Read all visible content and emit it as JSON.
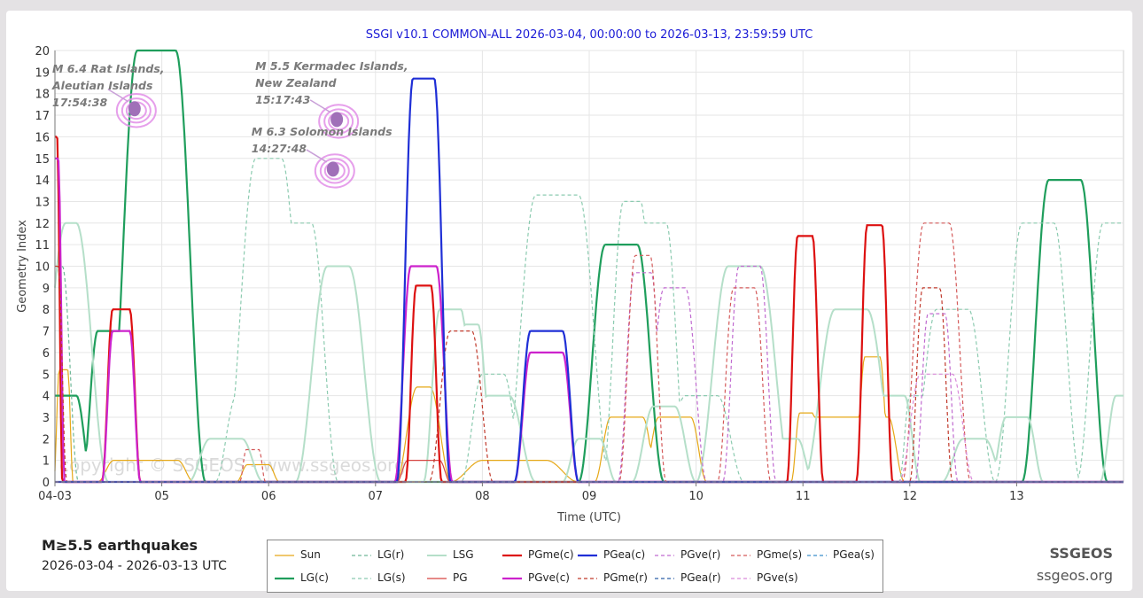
{
  "chart_data": {
    "type": "line",
    "title": "SSGI v10.1 COMMON-ALL 2026-03-04, 00:00:00 to 2026-03-13, 23:59:59 UTC",
    "xlabel": "Time (UTC)",
    "ylabel": "Geometry Index",
    "xlim": [
      0,
      10
    ],
    "ylim": [
      0,
      20
    ],
    "x_ticks": [
      {
        "x": 0,
        "label": "04-03"
      },
      {
        "x": 1,
        "label": "05"
      },
      {
        "x": 2,
        "label": "06"
      },
      {
        "x": 3,
        "label": "07"
      },
      {
        "x": 4,
        "label": "08"
      },
      {
        "x": 5,
        "label": "09"
      },
      {
        "x": 6,
        "label": "10"
      },
      {
        "x": 7,
        "label": "11"
      },
      {
        "x": 8,
        "label": "12"
      },
      {
        "x": 9,
        "label": "13"
      }
    ],
    "y_ticks": [
      0,
      1,
      2,
      3,
      4,
      5,
      6,
      7,
      8,
      9,
      10,
      11,
      12,
      13,
      14,
      15,
      16,
      17,
      18,
      19,
      20
    ],
    "grid": true,
    "legend_position": "bottom",
    "watermark": "copyright © SSGEOS - www.ssgeos.org",
    "series": [
      {
        "name": "Sun",
        "color": "#e6a817",
        "style": "solid",
        "width": 1.2,
        "peaks": [
          [
            0.08,
            5.2,
            0.04,
            0.05
          ],
          [
            0.85,
            1,
            0.3,
            0.15
          ],
          [
            1.0,
            0.8,
            0.1,
            0.1
          ],
          [
            1.9,
            0.8,
            0.1,
            0.1
          ],
          [
            3.45,
            4.4,
            0.06,
            0.2
          ],
          [
            4.3,
            1,
            0.3,
            0.3
          ],
          [
            5.35,
            3,
            0.15,
            0.15
          ],
          [
            5.8,
            3,
            0.15,
            0.15
          ],
          [
            7.03,
            3.2,
            0.06,
            0.08
          ],
          [
            7.45,
            3,
            0.35,
            0.15
          ],
          [
            7.65,
            5.8,
            0.07,
            0.1
          ]
        ]
      },
      {
        "name": "LG(c)",
        "color": "#1f9e5c",
        "style": "solid",
        "width": 2.2,
        "peaks": [
          [
            0.0,
            4,
            0.2,
            0.15
          ],
          [
            0.5,
            7,
            0.1,
            0.15
          ],
          [
            0.95,
            20,
            0.18,
            0.28
          ],
          [
            5.3,
            11,
            0.15,
            0.25
          ],
          [
            9.45,
            14,
            0.15,
            0.25
          ]
        ]
      },
      {
        "name": "LG(r)",
        "color": "#6fb898",
        "style": "dash",
        "width": 1.2,
        "peaks": [
          [
            0.05,
            10,
            0.02,
            0.15
          ]
        ]
      },
      {
        "name": "LG(s)",
        "color": "#8ccbb0",
        "style": "dash",
        "width": 1.2,
        "peaks": [
          [
            1.85,
            4,
            0.15,
            0.2
          ],
          [
            2.0,
            15,
            0.12,
            0.3
          ],
          [
            2.25,
            12,
            0.15,
            0.25
          ],
          [
            4.1,
            5,
            0.1,
            0.2
          ],
          [
            4.7,
            13.3,
            0.2,
            0.3
          ],
          [
            5.4,
            13,
            0.08,
            0.2
          ],
          [
            5.6,
            12,
            0.12,
            0.2
          ],
          [
            6.05,
            4,
            0.15,
            0.25
          ],
          [
            8.4,
            8,
            0.15,
            0.25
          ],
          [
            8.1,
            4,
            0.1,
            0.1
          ],
          [
            9.2,
            12,
            0.15,
            0.25
          ],
          [
            9.93,
            12,
            0.12,
            0.25
          ]
        ]
      },
      {
        "name": "LSG",
        "color": "#b5dfc9",
        "style": "solid",
        "width": 2.0,
        "peaks": [
          [
            0.15,
            12,
            0.05,
            0.3
          ],
          [
            1.6,
            2,
            0.15,
            0.2
          ],
          [
            2.65,
            10,
            0.1,
            0.3
          ],
          [
            3.7,
            8,
            0.1,
            0.15
          ],
          [
            3.9,
            7.3,
            0.06,
            0.15
          ],
          [
            4.15,
            4,
            0.1,
            0.25
          ],
          [
            5.0,
            2,
            0.1,
            0.15
          ],
          [
            5.7,
            3.5,
            0.1,
            0.2
          ],
          [
            6.45,
            10,
            0.15,
            0.3
          ],
          [
            6.85,
            2,
            0.1,
            0.15
          ],
          [
            7.45,
            8,
            0.15,
            0.3
          ],
          [
            7.85,
            4,
            0.1,
            0.15
          ],
          [
            8.6,
            2,
            0.1,
            0.2
          ],
          [
            9.0,
            3,
            0.1,
            0.15
          ],
          [
            9.98,
            4,
            0.05,
            0.15
          ]
        ]
      },
      {
        "name": "PG",
        "color": "#d64541",
        "style": "solid",
        "width": 1.2,
        "peaks": [
          [
            3.45,
            1,
            0.15,
            0.1
          ]
        ]
      },
      {
        "name": "PGme(c)",
        "color": "#dd1111",
        "style": "solid",
        "width": 2.2,
        "peaks": [
          [
            0.0,
            16,
            0.02,
            0.05
          ],
          [
            0.62,
            8,
            0.08,
            0.1
          ],
          [
            3.45,
            9.1,
            0.07,
            0.1
          ],
          [
            7.02,
            11.4,
            0.07,
            0.1
          ],
          [
            7.67,
            11.9,
            0.07,
            0.1
          ]
        ]
      },
      {
        "name": "PGve(c)",
        "color": "#cc22cc",
        "style": "solid",
        "width": 2.2,
        "peaks": [
          [
            0.0,
            15,
            0.03,
            0.06
          ],
          [
            0.62,
            7,
            0.08,
            0.1
          ],
          [
            3.45,
            10,
            0.12,
            0.15
          ],
          [
            4.6,
            6,
            0.15,
            0.15
          ]
        ]
      },
      {
        "name": "PGme(r)",
        "color": "#c0392b",
        "style": "dash",
        "width": 1.2,
        "peaks": [
          [
            0.0,
            10,
            0.03,
            0.08
          ],
          [
            3.8,
            7,
            0.1,
            0.2
          ],
          [
            8.2,
            9,
            0.08,
            0.12
          ]
        ]
      },
      {
        "name": "PGea(c)",
        "color": "#1f2fd6",
        "style": "solid",
        "width": 2.2,
        "peaks": [
          [
            3.45,
            18.7,
            0.1,
            0.15
          ],
          [
            4.6,
            7,
            0.15,
            0.15
          ]
        ]
      },
      {
        "name": "PGea(r)",
        "color": "#2c5fa8",
        "style": "dash",
        "width": 1.2,
        "peaks": []
      },
      {
        "name": "PGve(r)",
        "color": "#c06ad0",
        "style": "dash",
        "width": 1.2,
        "peaks": [
          [
            5.5,
            9.7,
            0.08,
            0.15
          ],
          [
            5.8,
            9,
            0.1,
            0.2
          ],
          [
            6.5,
            10,
            0.1,
            0.15
          ],
          [
            8.25,
            7.8,
            0.08,
            0.12
          ]
        ]
      },
      {
        "name": "PGme(s)",
        "color": "#d45a5a",
        "style": "dash",
        "width": 1.2,
        "peaks": [
          [
            1.85,
            1.5,
            0.06,
            0.06
          ],
          [
            5.5,
            10.5,
            0.07,
            0.15
          ],
          [
            6.45,
            9,
            0.1,
            0.15
          ],
          [
            8.25,
            12,
            0.12,
            0.2
          ]
        ]
      },
      {
        "name": "PGve(s)",
        "color": "#d98ad9",
        "style": "dash",
        "width": 1.2,
        "peaks": [
          [
            8.25,
            5,
            0.15,
            0.2
          ]
        ]
      },
      {
        "name": "PGea(s)",
        "color": "#3a8fc9",
        "style": "dash",
        "width": 1.2,
        "peaks": []
      }
    ],
    "annotations": [
      {
        "lines": [
          "M 6.4 Rat Islands,",
          "Aleutian Islands",
          "17:54:38"
        ],
        "x": 0.745,
        "y": 17.3
      },
      {
        "lines": [
          "M 5.5 Kermadec Islands,",
          "New Zealand",
          "15:17:43"
        ],
        "x": 2.638,
        "y": 16.8
      },
      {
        "lines": [
          "M 6.3 Solomon Islands",
          "14:27:48"
        ],
        "x": 2.602,
        "y": 14.5
      }
    ]
  },
  "footer": {
    "title": "M≥5.5 earthquakes",
    "date_range": "2026-03-04 - 2026-03-13 UTC",
    "brand": "SSGEOS",
    "site": "ssgeos.org"
  },
  "legend_order": [
    "Sun",
    "LG(r)",
    "LSG",
    "PGme(c)",
    "PGea(c)",
    "PGve(r)",
    "PGme(s)",
    "PGea(s)",
    "LG(c)",
    "LG(s)",
    "PG",
    "PGve(c)",
    "PGme(r)",
    "PGea(r)",
    "PGve(s)"
  ]
}
